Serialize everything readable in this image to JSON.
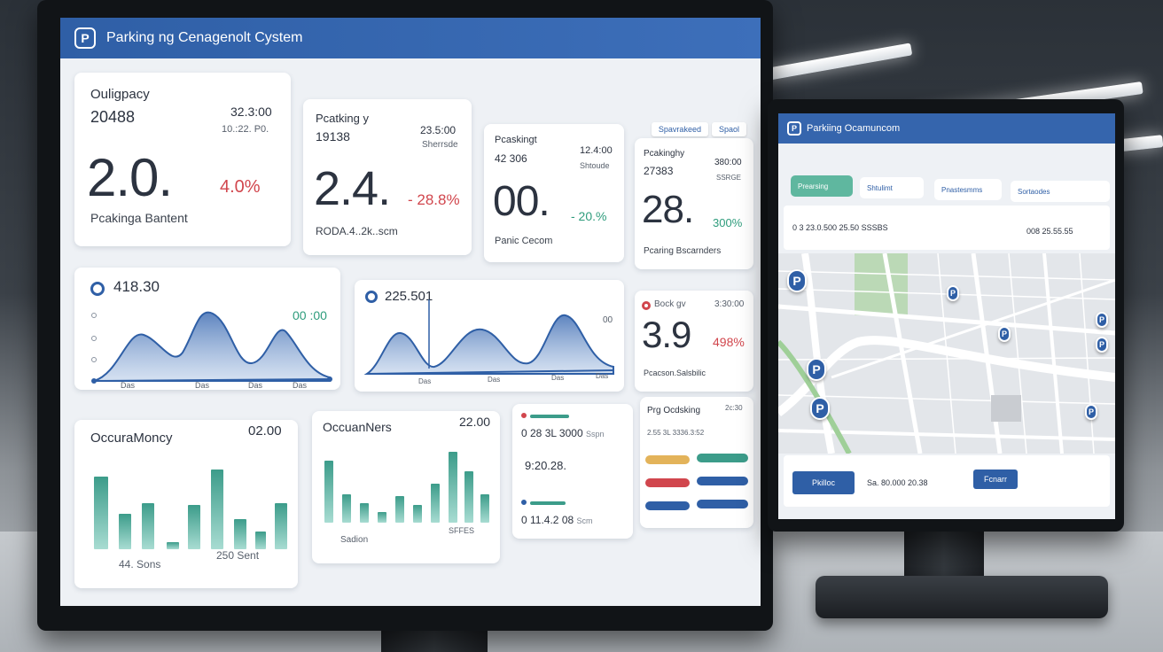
{
  "app": {
    "title": "Parking ng Cenagenolt Cystem",
    "logo_letter": "P",
    "top_buttons": [
      "Spavrakeed",
      "Spaol"
    ]
  },
  "kpis": [
    {
      "label": "Ouligpacy",
      "count": "20488",
      "time": "32.3:00",
      "subtime": "10.:22. P0.",
      "big": "2.0.",
      "delta": "4.0%",
      "delta_color": "red",
      "caption": "Pcakinga Bantent"
    },
    {
      "label": "Pcatking y",
      "count": "19138",
      "time": "23.5:00",
      "subtime": "Sherrsde",
      "big": "2.4.",
      "delta": "- 28.8%",
      "delta_color": "red",
      "caption": "RODA.4..2k..scm"
    },
    {
      "label": "Pcaskingt",
      "count": "42 306",
      "time": "12.4:00",
      "subtime": "Shtoude",
      "big": "00.",
      "delta": "- 20.%",
      "delta_color": "green",
      "caption": "Panic Cecom"
    },
    {
      "label": "Pcakinghy",
      "count": "27383",
      "time": "380:00",
      "subtime": "SSRGE",
      "big": "28.",
      "delta": "300%",
      "delta_color": "green",
      "caption": "Pcaring Bscarnders"
    }
  ],
  "area_charts": [
    {
      "title": "418.30",
      "corner": "00 :00",
      "ticks": [
        "Das",
        "Das",
        "Das",
        "Das"
      ]
    },
    {
      "title": "225.501",
      "corner": "00",
      "ticks": [
        "Das",
        "Das",
        "Das",
        "Das"
      ]
    }
  ],
  "alert_card": {
    "title": "Bock gv",
    "time": "3:30:00",
    "big": "3.9",
    "delta": "498%",
    "caption": "Pcacson.Salsbilic"
  },
  "bar_charts": [
    {
      "title": "OccuraMoncy",
      "corner": "02.00",
      "ticks": [
        "44.",
        "250"
      ],
      "footer": [
        "44. Sons",
        "250 Sent"
      ]
    },
    {
      "title": "OccuanNers",
      "corner": "22.00",
      "footer": [
        "Sadion",
        "SFFES"
      ]
    }
  ],
  "legend_card": {
    "row1": "0 28 3L 3000",
    "row1_suffix": "Sspn",
    "row2": "9:20.28.",
    "row2_suffix": "",
    "row3": "0 11.4.2 08",
    "row3_suffix": "Scm"
  },
  "settings_card": {
    "title": "Prg Ocdsking",
    "corner": "2c:30",
    "line": "2.55 3L 3336.3:52",
    "toggle_colors": [
      "#e3b35a",
      "#3c9c8a",
      "#d1464d",
      "#2f5fa6",
      "#2f5fa6",
      "#2f5fa6"
    ]
  },
  "secondary": {
    "title": "Parkiing Ocamuncom",
    "tabs": [
      "Prearsing",
      "Shtulimt",
      "Pnastesmms",
      "Sortaodes"
    ],
    "row": "0 3 23.0.500 25.50 SSSBS",
    "row_right": "008 25.55.55",
    "button1": "Pkilloc",
    "status": "Sa. 80.000 20.38",
    "button2": "Fcnarr",
    "pin_letter": "P"
  },
  "colors": {
    "primary": "#2f5fa6",
    "accent_green": "#2e9c7c",
    "accent_red": "#d1464d"
  }
}
